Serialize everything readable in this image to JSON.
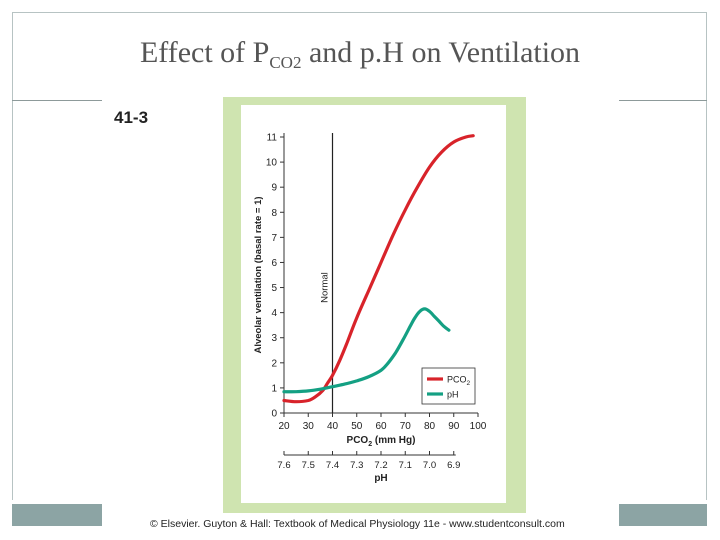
{
  "slide": {
    "title_pre": "Effect of P",
    "title_sub": "CO2",
    "title_post": " and p.H on Ventilation",
    "figure_number": "41-3",
    "copyright": "© Elsevier. Guyton & Hall: Textbook of Medical Physiology 11e - www.studentconsult.com"
  },
  "colors": {
    "pco2": "#d8232a",
    "ph": "#14a083",
    "panel": "#cfe4b0",
    "plot_bg": "#ffffff"
  },
  "chart_data": {
    "type": "line",
    "ylabel": "Alveolar ventilation (basal rate = 1)",
    "xlabel_main": "PCO",
    "xlabel_main_sub": "2",
    "xlabel_main_unit": " (mm Hg)",
    "xlabel_ph": "pH",
    "xlim": [
      20,
      100
    ],
    "ylim": [
      0,
      11
    ],
    "x_ticks": [
      "20",
      "30",
      "40",
      "50",
      "60",
      "70",
      "80",
      "90",
      "100"
    ],
    "x_tick_values": [
      20,
      30,
      40,
      50,
      60,
      70,
      80,
      90,
      100
    ],
    "y_ticks": [
      "0",
      "1",
      "2",
      "3",
      "4",
      "5",
      "6",
      "7",
      "8",
      "9",
      "10",
      "11"
    ],
    "ph_ticks": [
      "7.6",
      "7.5",
      "7.4",
      "7.3",
      "7.2",
      "7.1",
      "7.0",
      "6.9"
    ],
    "ph_tick_pco2": [
      20,
      30,
      40,
      50,
      60,
      70,
      80,
      90
    ],
    "reference_line": {
      "x": 40,
      "label": "Normal"
    },
    "legend": {
      "position": "bottom-right",
      "entries": [
        "PCO2",
        "pH"
      ]
    },
    "legend_pco2_main": "PCO",
    "legend_pco2_sub": "2",
    "legend_ph": "pH",
    "series": [
      {
        "name": "PCO2",
        "color": "#d8232a",
        "x": [
          20,
          25,
          30,
          33,
          36,
          38,
          40,
          43,
          46,
          50,
          55,
          60,
          65,
          70,
          75,
          80,
          85,
          90,
          95,
          98
        ],
        "y": [
          0.5,
          0.45,
          0.5,
          0.65,
          0.9,
          1.2,
          1.5,
          2.1,
          2.8,
          3.8,
          4.9,
          6.0,
          7.1,
          8.1,
          9.0,
          9.8,
          10.4,
          10.8,
          11.0,
          11.05
        ]
      },
      {
        "name": "pH",
        "color": "#14a083",
        "x": [
          20,
          25,
          30,
          35,
          40,
          45,
          50,
          55,
          60,
          63,
          66,
          69,
          72,
          74,
          76,
          78,
          80,
          82,
          84,
          86,
          88
        ],
        "y": [
          0.85,
          0.85,
          0.88,
          0.95,
          1.05,
          1.15,
          1.28,
          1.45,
          1.7,
          2.0,
          2.4,
          2.9,
          3.45,
          3.8,
          4.05,
          4.15,
          4.05,
          3.85,
          3.65,
          3.45,
          3.3
        ]
      }
    ]
  }
}
